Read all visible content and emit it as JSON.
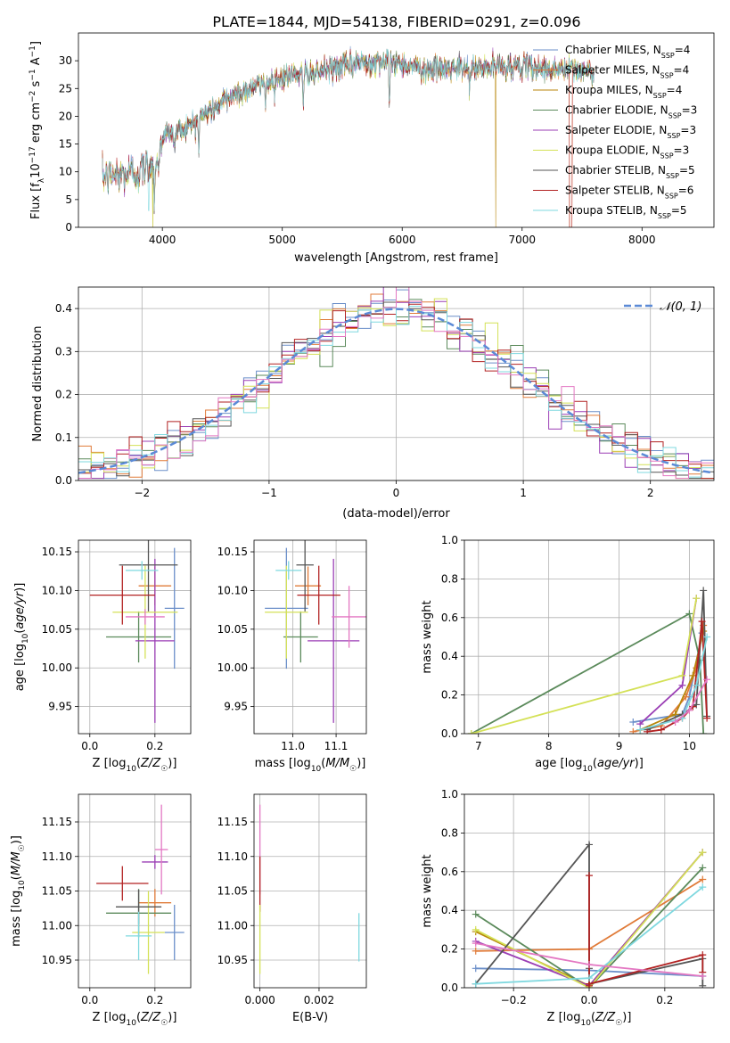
{
  "title": "PLATE=1844, MJD=54138, FIBERID=0291, z=0.096",
  "colors": {
    "chabrier_miles": "#6b8fc9",
    "salpeter_miles": "#e07b39",
    "kroupa_miles": "#b8860b",
    "chabrier_elodie": "#5b8a5b",
    "salpeter_elodie": "#9b3fb5",
    "kroupa_elodie": "#d4e157",
    "chabrier_stelib": "#555555",
    "salpeter_stelib": "#b22222",
    "kroupa_stelib": "#7fd8df",
    "pink": "#e377c2",
    "gaussian": "#5b8ad6"
  },
  "chart_data": [
    {
      "type": "line",
      "title": "PLATE=1844, MJD=54138, FIBERID=0291, z=0.096",
      "xlabel": "wavelength [Angstrom, rest frame]",
      "ylabel": "Flux [f_λ 10^-17 erg cm^-2 s^-1 A^-1]",
      "xlim": [
        3300,
        8600
      ],
      "ylim": [
        0,
        35
      ],
      "xticks": [
        "4000",
        "5000",
        "6000",
        "7000",
        "8000"
      ],
      "yticks": [
        "0",
        "5",
        "10",
        "15",
        "20",
        "25",
        "30"
      ],
      "legend_position": "top-right",
      "series": [
        {
          "name": "Chabrier MILES, N_SSP=4"
        },
        {
          "name": "Salpeter MILES, N_SSP=4"
        },
        {
          "name": "Kroupa MILES, N_SSP=4"
        },
        {
          "name": "Chabrier ELODIE, N_SSP=3"
        },
        {
          "name": "Salpeter ELODIE, N_SSP=3"
        },
        {
          "name": "Kroupa ELODIE, N_SSP=3"
        },
        {
          "name": "Chabrier STELIB, N_SSP=5"
        },
        {
          "name": "Salpeter STELIB, N_SSP=6"
        },
        {
          "name": "Kroupa STELIB, N_SSP=5"
        }
      ],
      "continuum": {
        "x": [
          3500,
          3800,
          3950,
          4000,
          4200,
          4400,
          4600,
          4800,
          5000,
          5200,
          5400,
          5600,
          5800,
          6000,
          6200,
          6400,
          6600,
          6800,
          7000,
          7200,
          7400,
          7600
        ],
        "y": [
          9,
          10,
          12,
          16.5,
          18,
          21,
          24,
          25.5,
          27,
          28,
          28.5,
          29.5,
          30,
          29.5,
          28.5,
          28.5,
          28.5,
          29,
          29,
          28.5,
          28.5,
          28
        ]
      },
      "absorption_lines": [
        {
          "x": 3933,
          "depth": 6
        },
        {
          "x": 3968,
          "depth": 5
        },
        {
          "x": 4102,
          "depth": 4
        },
        {
          "x": 4304,
          "depth": 5
        },
        {
          "x": 4861,
          "depth": 3
        },
        {
          "x": 5175,
          "depth": 7
        },
        {
          "x": 5270,
          "depth": 3
        },
        {
          "x": 5893,
          "depth": 8
        },
        {
          "x": 6563,
          "depth": 3
        }
      ]
    },
    {
      "type": "step",
      "xlabel": "(data-model)/error",
      "ylabel": "Normed distribution",
      "xlim": [
        -2.5,
        2.5
      ],
      "ylim": [
        0,
        0.45
      ],
      "xticks": [
        "−2",
        "−1",
        "0",
        "1",
        "2"
      ],
      "yticks": [
        "0.0",
        "0.1",
        "0.2",
        "0.3",
        "0.4"
      ],
      "legend_position": "top-right",
      "reference": {
        "name": "𝒩(0, 1)",
        "mean": 0,
        "sigma": 1
      },
      "bin_width": 0.1,
      "histogram_series": 9
    },
    {
      "type": "errorbar",
      "xlabel": "Z [log10(Z/Z☉)]",
      "ylabel": "age [log10(age/yr)]",
      "xlim": [
        -0.035,
        0.31
      ],
      "ylim": [
        9.915,
        10.165
      ],
      "xticks": [
        "0.0",
        "0.2"
      ],
      "yticks": [
        "9.95",
        "10.00",
        "10.05",
        "10.10",
        "10.15"
      ],
      "points": [
        {
          "color": "chabrier_miles",
          "x": 0.26,
          "xerr": 0.03,
          "y": 10.077,
          "yerr": 0.078
        },
        {
          "color": "salpeter_miles",
          "x": 0.2,
          "xerr": 0.05,
          "y": 10.106,
          "yerr": 0.025
        },
        {
          "color": "chabrier_elodie",
          "x": 0.15,
          "xerr": 0.1,
          "y": 10.04,
          "yerr": 0.033
        },
        {
          "color": "salpeter_elodie",
          "x": 0.2,
          "xerr": 0.06,
          "y": 10.035,
          "yerr": 0.106
        },
        {
          "color": "kroupa_elodie",
          "x": 0.17,
          "xerr": 0.1,
          "y": 10.072,
          "yerr": 0.06
        },
        {
          "color": "chabrier_stelib",
          "x": 0.18,
          "xerr": 0.09,
          "y": 10.133,
          "yerr": 0.06
        },
        {
          "color": "salpeter_stelib",
          "x": 0.1,
          "xerr": 0.1,
          "y": 10.094,
          "yerr": 0.038
        },
        {
          "color": "kroupa_stelib",
          "x": 0.16,
          "xerr": 0.05,
          "y": 10.126,
          "yerr": 0.012
        },
        {
          "color": "pink",
          "x": 0.17,
          "xerr": 0.06,
          "y": 10.066,
          "yerr": 0.01
        }
      ]
    },
    {
      "type": "errorbar",
      "xlabel": "mass [log10(M/M☉)]",
      "xlim": [
        10.91,
        11.17
      ],
      "ylim": [
        9.915,
        10.165
      ],
      "xticks": [
        "11.0",
        "11.1"
      ],
      "yticks": [
        "9.95",
        "10.00",
        "10.05",
        "10.10",
        "10.15"
      ],
      "points": [
        {
          "color": "chabrier_miles",
          "x": 10.985,
          "xerr": 0.05,
          "y": 10.077,
          "yerr": 0.078
        },
        {
          "color": "salpeter_miles",
          "x": 11.035,
          "xerr": 0.03,
          "y": 10.106,
          "yerr": 0.025
        },
        {
          "color": "chabrier_elodie",
          "x": 11.018,
          "xerr": 0.04,
          "y": 10.04,
          "yerr": 0.033
        },
        {
          "color": "salpeter_elodie",
          "x": 11.094,
          "xerr": 0.06,
          "y": 10.035,
          "yerr": 0.106
        },
        {
          "color": "kroupa_elodie",
          "x": 10.985,
          "xerr": 0.05,
          "y": 10.072,
          "yerr": 0.06
        },
        {
          "color": "chabrier_stelib",
          "x": 11.028,
          "xerr": 0.02,
          "y": 10.133,
          "yerr": 0.06
        },
        {
          "color": "salpeter_stelib",
          "x": 11.06,
          "xerr": 0.05,
          "y": 10.094,
          "yerr": 0.038
        },
        {
          "color": "kroupa_stelib",
          "x": 10.99,
          "xerr": 0.03,
          "y": 10.126,
          "yerr": 0.012
        },
        {
          "color": "pink",
          "x": 11.13,
          "xerr": 0.04,
          "y": 10.066,
          "yerr": 0.04
        }
      ]
    },
    {
      "type": "line",
      "xlabel": "age [log10(age/yr)]",
      "ylabel": "mass weight",
      "xlim": [
        6.8,
        10.35
      ],
      "ylim": [
        0,
        1
      ],
      "xticks": [
        "7",
        "8",
        "9",
        "10"
      ],
      "yticks": [
        "0.0",
        "0.2",
        "0.4",
        "0.6",
        "0.8",
        "1.0"
      ],
      "series": [
        {
          "color": "chabrier_miles",
          "x": [
            9.2,
            9.9,
            10.0,
            10.18
          ],
          "y": [
            0.06,
            0.1,
            0.19,
            0.52
          ]
        },
        {
          "color": "salpeter_miles",
          "x": [
            9.2,
            9.6,
            9.95,
            10.1,
            10.2
          ],
          "y": [
            0.01,
            0.04,
            0.19,
            0.34,
            0.56
          ]
        },
        {
          "color": "kroupa_miles",
          "x": [
            9.3,
            9.8,
            10.05,
            10.2
          ],
          "y": [
            0.02,
            0.1,
            0.3,
            0.53
          ]
        },
        {
          "color": "chabrier_elodie",
          "x": [
            6.9,
            10.0,
            10.15,
            10.2
          ],
          "y": [
            0.0,
            0.62,
            0.38,
            0.0
          ]
        },
        {
          "color": "salpeter_elodie",
          "x": [
            9.3,
            9.9,
            10.1
          ],
          "y": [
            0.05,
            0.25,
            0.7
          ]
        },
        {
          "color": "kroupa_elodie",
          "x": [
            6.9,
            9.9,
            10.1
          ],
          "y": [
            0.0,
            0.3,
            0.7
          ]
        },
        {
          "color": "chabrier_stelib",
          "x": [
            9.4,
            9.9,
            10.1,
            10.2,
            10.25
          ],
          "y": [
            0.02,
            0.1,
            0.15,
            0.74,
            0.09
          ]
        },
        {
          "color": "salpeter_stelib",
          "x": [
            9.4,
            9.6,
            9.9,
            10.05,
            10.18,
            10.25
          ],
          "y": [
            0.01,
            0.02,
            0.08,
            0.14,
            0.58,
            0.08
          ]
        },
        {
          "color": "kroupa_stelib",
          "x": [
            9.3,
            9.9,
            10.1,
            10.25
          ],
          "y": [
            0.02,
            0.08,
            0.25,
            0.5
          ]
        },
        {
          "color": "pink",
          "x": [
            9.8,
            10.0,
            10.25
          ],
          "y": [
            0.06,
            0.12,
            0.28
          ]
        }
      ]
    },
    {
      "type": "errorbar",
      "xlabel": "Z [log10(Z/Z☉)]",
      "ylabel": "mass [log10(M/M☉)]",
      "xlim": [
        -0.035,
        0.31
      ],
      "ylim": [
        10.91,
        11.19
      ],
      "xticks": [
        "0.0",
        "0.2"
      ],
      "yticks": [
        "10.95",
        "11.00",
        "11.05",
        "11.10",
        "11.15"
      ],
      "points": [
        {
          "color": "chabrier_miles",
          "x": 0.26,
          "xerr": 0.03,
          "y": 10.99,
          "yerr": 0.04
        },
        {
          "color": "salpeter_miles",
          "x": 0.2,
          "xerr": 0.05,
          "y": 11.033,
          "yerr": 0.02
        },
        {
          "color": "chabrier_elodie",
          "x": 0.15,
          "xerr": 0.1,
          "y": 11.018,
          "yerr": 0.035
        },
        {
          "color": "salpeter_elodie",
          "x": 0.2,
          "xerr": 0.04,
          "y": 11.092,
          "yerr": 0.01
        },
        {
          "color": "kroupa_elodie",
          "x": 0.18,
          "xerr": 0.05,
          "y": 10.99,
          "yerr": 0.06
        },
        {
          "color": "chabrier_stelib",
          "x": 0.15,
          "xerr": 0.07,
          "y": 11.027,
          "yerr": 0.025
        },
        {
          "color": "salpeter_stelib",
          "x": 0.1,
          "xerr": 0.08,
          "y": 11.061,
          "yerr": 0.025
        },
        {
          "color": "kroupa_stelib",
          "x": 0.15,
          "xerr": 0.04,
          "y": 10.985,
          "yerr": 0.035
        },
        {
          "color": "pink",
          "x": 0.22,
          "xerr": 0.02,
          "y": 11.11,
          "yerr": 0.065
        }
      ]
    },
    {
      "type": "errorbar",
      "xlabel": "E(B-V)",
      "xlim": [
        -0.0002,
        0.0036
      ],
      "ylim": [
        10.91,
        11.19
      ],
      "xticks": [
        "0.000",
        "0.002"
      ],
      "yticks": [
        "10.95",
        "11.00",
        "11.05",
        "11.10",
        "11.15"
      ],
      "points": [
        {
          "color": "pink",
          "x": 0.0,
          "xerr": 0,
          "y": 11.11,
          "yerr": 0.065
        },
        {
          "color": "salpeter_stelib",
          "x": 0.0,
          "xerr": 0,
          "y": 11.06,
          "yerr": 0.04
        },
        {
          "color": "kroupa_elodie",
          "x": 0.0,
          "xerr": 0,
          "y": 10.98,
          "yerr": 0.05
        },
        {
          "color": "kroupa_stelib",
          "x": 0.00335,
          "xerr": 0,
          "y": 10.983,
          "yerr": 0.035
        }
      ]
    },
    {
      "type": "line",
      "xlabel": "Z [log10(Z/Z☉)]",
      "ylabel": "mass weight",
      "xlim": [
        -0.33,
        0.33
      ],
      "ylim": [
        0,
        1
      ],
      "xticks": [
        "−0.2",
        "0.0",
        "0.2"
      ],
      "yticks": [
        "0.0",
        "0.2",
        "0.4",
        "0.6",
        "0.8",
        "1.0"
      ],
      "series": [
        {
          "color": "chabrier_miles",
          "x": [
            -0.3,
            0.0,
            0.3
          ],
          "y": [
            0.1,
            0.09,
            0.06
          ]
        },
        {
          "color": "salpeter_miles",
          "x": [
            -0.3,
            0.0,
            0.3
          ],
          "y": [
            0.19,
            0.2,
            0.56
          ]
        },
        {
          "color": "kroupa_miles",
          "x": [
            -0.3,
            0.0,
            0.3
          ],
          "y": [
            0.29,
            0.01,
            0.7
          ]
        },
        {
          "color": "chabrier_elodie",
          "x": [
            -0.3,
            0.0,
            0.3
          ],
          "y": [
            0.38,
            0.0,
            0.62
          ]
        },
        {
          "color": "salpeter_elodie",
          "x": [
            -0.3,
            0.0,
            0.3
          ],
          "y": [
            0.24,
            0.01,
            0.7
          ]
        },
        {
          "color": "kroupa_elodie",
          "x": [
            -0.3,
            0.0,
            0.3
          ],
          "y": [
            0.3,
            0.0,
            0.7
          ]
        },
        {
          "color": "chabrier_stelib",
          "x": [
            -0.3,
            0.0,
            0.0,
            0.0,
            0.3,
            0.3
          ],
          "y": [
            0.02,
            0.74,
            0.1,
            0.02,
            0.15,
            0.01
          ]
        },
        {
          "color": "salpeter_stelib",
          "x": [
            0.0,
            0.0,
            0.0,
            0.3,
            0.3
          ],
          "y": [
            0.58,
            0.01,
            0.02,
            0.17,
            0.08
          ]
        },
        {
          "color": "kroupa_stelib",
          "x": [
            -0.3,
            0.0,
            0.3
          ],
          "y": [
            0.02,
            0.05,
            0.52
          ]
        },
        {
          "color": "pink",
          "x": [
            -0.3,
            0.0,
            0.3
          ],
          "y": [
            0.23,
            0.12,
            0.06
          ]
        }
      ]
    }
  ]
}
